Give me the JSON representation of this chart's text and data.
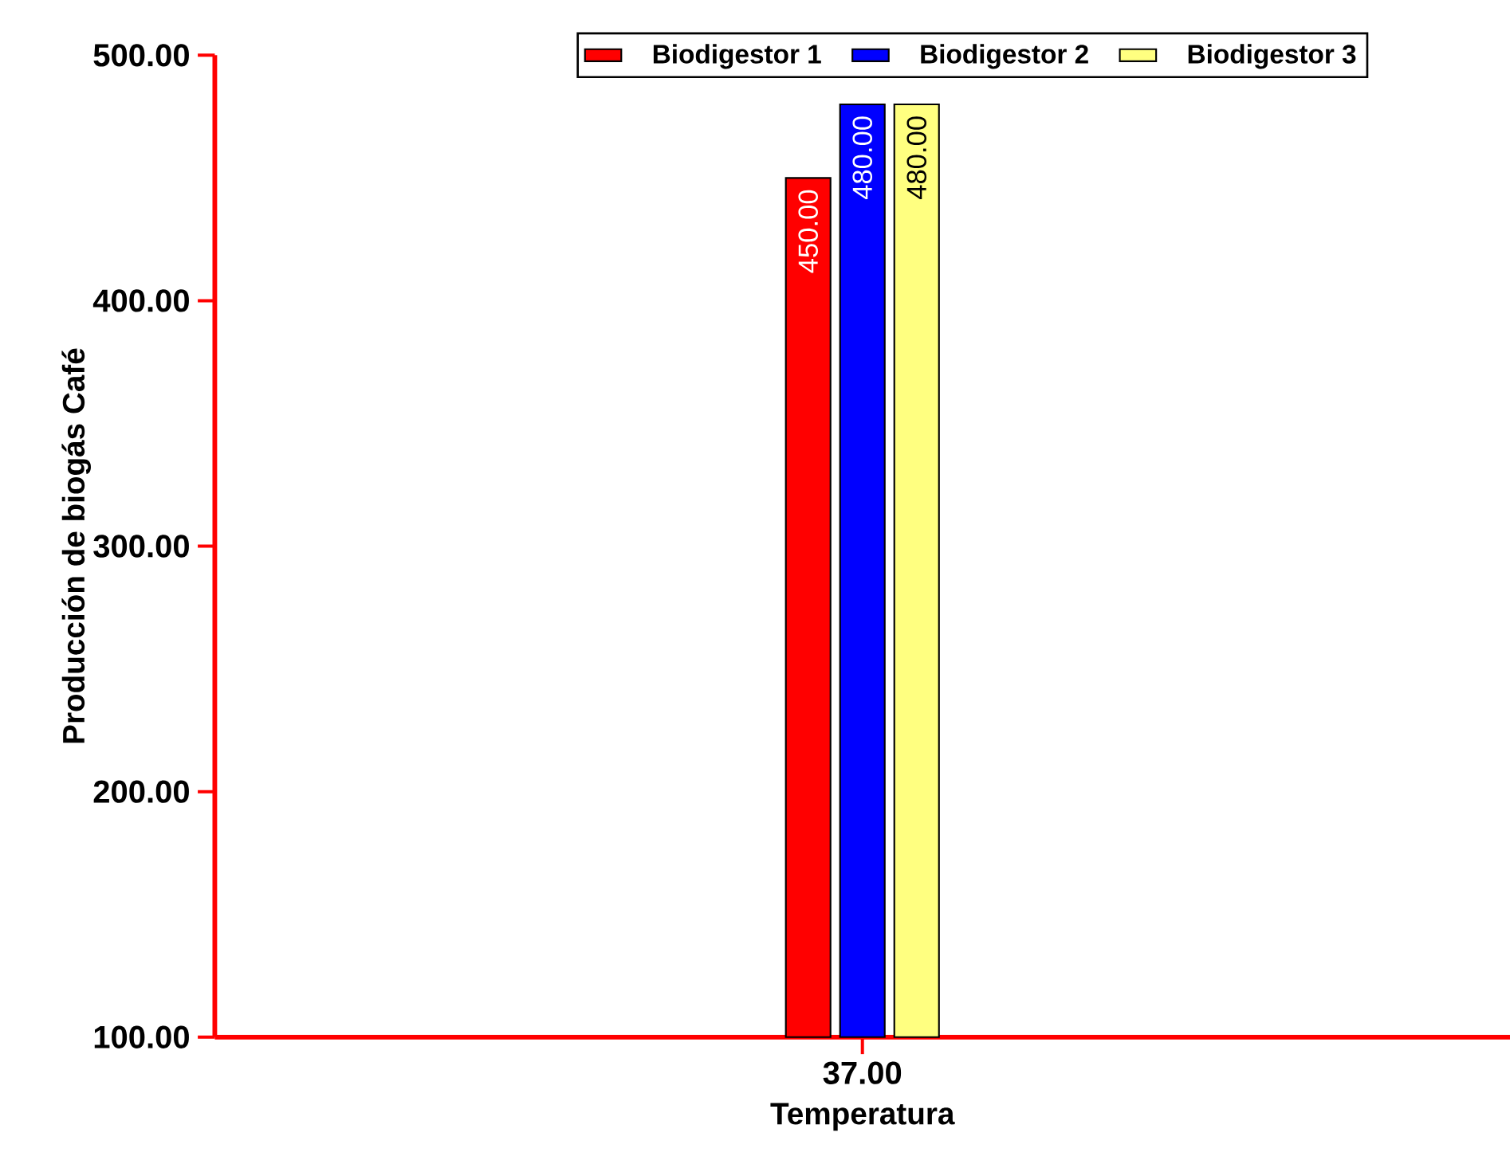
{
  "chart_data": {
    "type": "bar",
    "xlabel": "Temperatura",
    "ylabel": "Producción de biogás Café",
    "categories": [
      "37.00"
    ],
    "series": [
      {
        "name": "Biodigestor 1",
        "color": "#ff0000",
        "values": [
          450
        ],
        "value_labels": [
          "450.00"
        ]
      },
      {
        "name": "Biodigestor 2",
        "color": "#0000ff",
        "values": [
          480
        ],
        "value_labels": [
          "480.00"
        ]
      },
      {
        "name": "Biodigestor 3",
        "color": "#ffff80",
        "values": [
          480
        ],
        "value_labels": [
          "480.00"
        ]
      }
    ],
    "ylim": [
      100,
      500
    ],
    "yticks": [
      {
        "value": 100,
        "label": "100.00"
      },
      {
        "value": 200,
        "label": "200.00"
      },
      {
        "value": 300,
        "label": "300.00"
      },
      {
        "value": 400,
        "label": "400.00"
      },
      {
        "value": 500,
        "label": "500.00"
      }
    ],
    "legend": "top right"
  }
}
